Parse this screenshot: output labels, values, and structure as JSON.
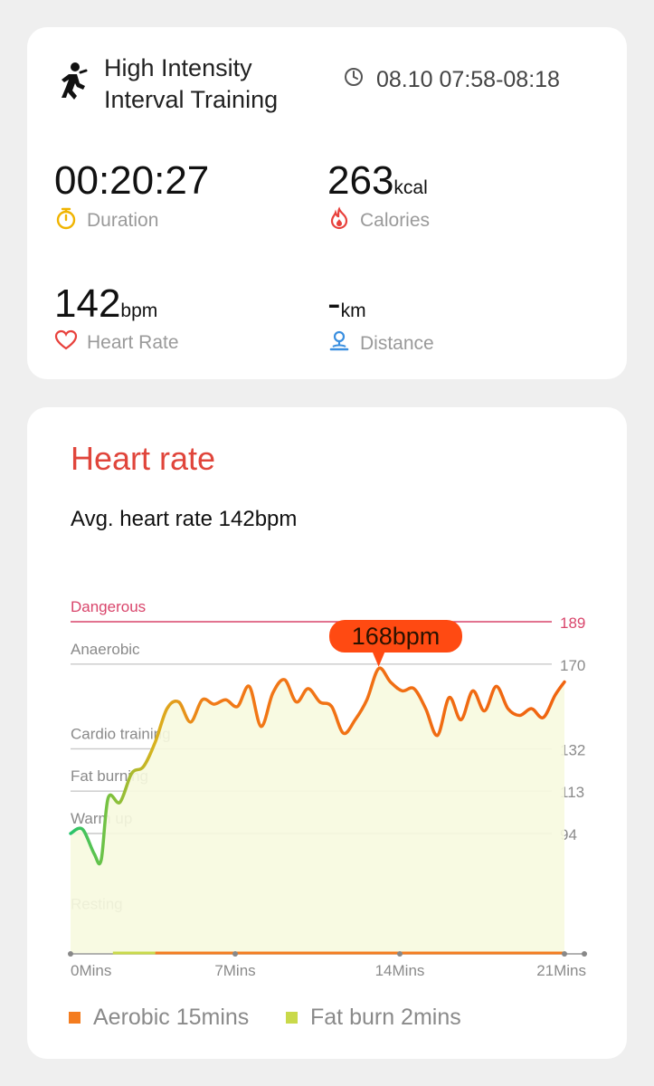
{
  "workout": {
    "title": "High Intensity Interval Training",
    "time_range": "08.10 07:58-08:18",
    "duration": {
      "value": "00:20:27",
      "label": "Duration"
    },
    "calories": {
      "value": "263",
      "unit": "kcal",
      "label": "Calories"
    },
    "heart_rate": {
      "value": "142",
      "unit": "bpm",
      "label": "Heart Rate"
    },
    "distance": {
      "value": "-",
      "unit": "km",
      "label": "Distance"
    }
  },
  "heart_rate_section": {
    "title": "Heart rate",
    "avg": "Avg. heart rate 142bpm",
    "peak_label": "168bpm",
    "legend": [
      {
        "label": "Aerobic 15mins",
        "color": "#f47c1f"
      },
      {
        "label": "Fat burn 2mins",
        "color": "#c9d94a"
      }
    ]
  },
  "colors": {
    "accent_red": "#e0453b",
    "danger": "#d9456b",
    "peak": "#ff4a12"
  },
  "chart_data": {
    "type": "line",
    "x": [
      0,
      0.5,
      1.0,
      1.3,
      1.6,
      2.1,
      2.6,
      3.1,
      3.6,
      4.1,
      4.6,
      5.1,
      5.6,
      6.1,
      6.6,
      7.1,
      7.6,
      8.1,
      8.6,
      9.1,
      9.6,
      10.1,
      10.6,
      11.1,
      11.6,
      12.1,
      12.6,
      13.1,
      13.6,
      14.1,
      14.6,
      15.1,
      15.6,
      16.1,
      16.6,
      17.1,
      17.6,
      18.1,
      18.6,
      19.1,
      19.6,
      20.1,
      20.6,
      21.0
    ],
    "y": [
      94,
      96,
      85,
      82,
      110,
      108,
      121,
      124,
      135,
      150,
      153,
      144,
      154,
      152,
      154,
      151,
      160,
      142,
      157,
      163,
      153,
      159,
      153,
      151,
      139,
      145,
      154,
      168,
      162,
      158,
      159,
      150,
      138,
      155,
      145,
      158,
      149,
      160,
      150,
      147,
      150,
      146,
      156,
      162
    ],
    "xlim": [
      0,
      21
    ],
    "ylim": [
      40,
      190
    ],
    "x_ticks": [
      {
        "value": 0,
        "label": "0Mins"
      },
      {
        "value": 7,
        "label": "7Mins"
      },
      {
        "value": 14,
        "label": "14Mins"
      },
      {
        "value": 21,
        "label": "21Mins"
      }
    ],
    "zones": [
      {
        "name": "Dangerous",
        "threshold": 189
      },
      {
        "name": "Anaerobic",
        "threshold": 170
      },
      {
        "name": "Cardio training",
        "threshold": 132
      },
      {
        "name": "Fat burning",
        "threshold": 113
      },
      {
        "name": "Warm up",
        "threshold": 94
      },
      {
        "name": "Resting"
      }
    ],
    "peak": {
      "x": 13.1,
      "y": 168
    },
    "legend_placement": "bottom"
  }
}
